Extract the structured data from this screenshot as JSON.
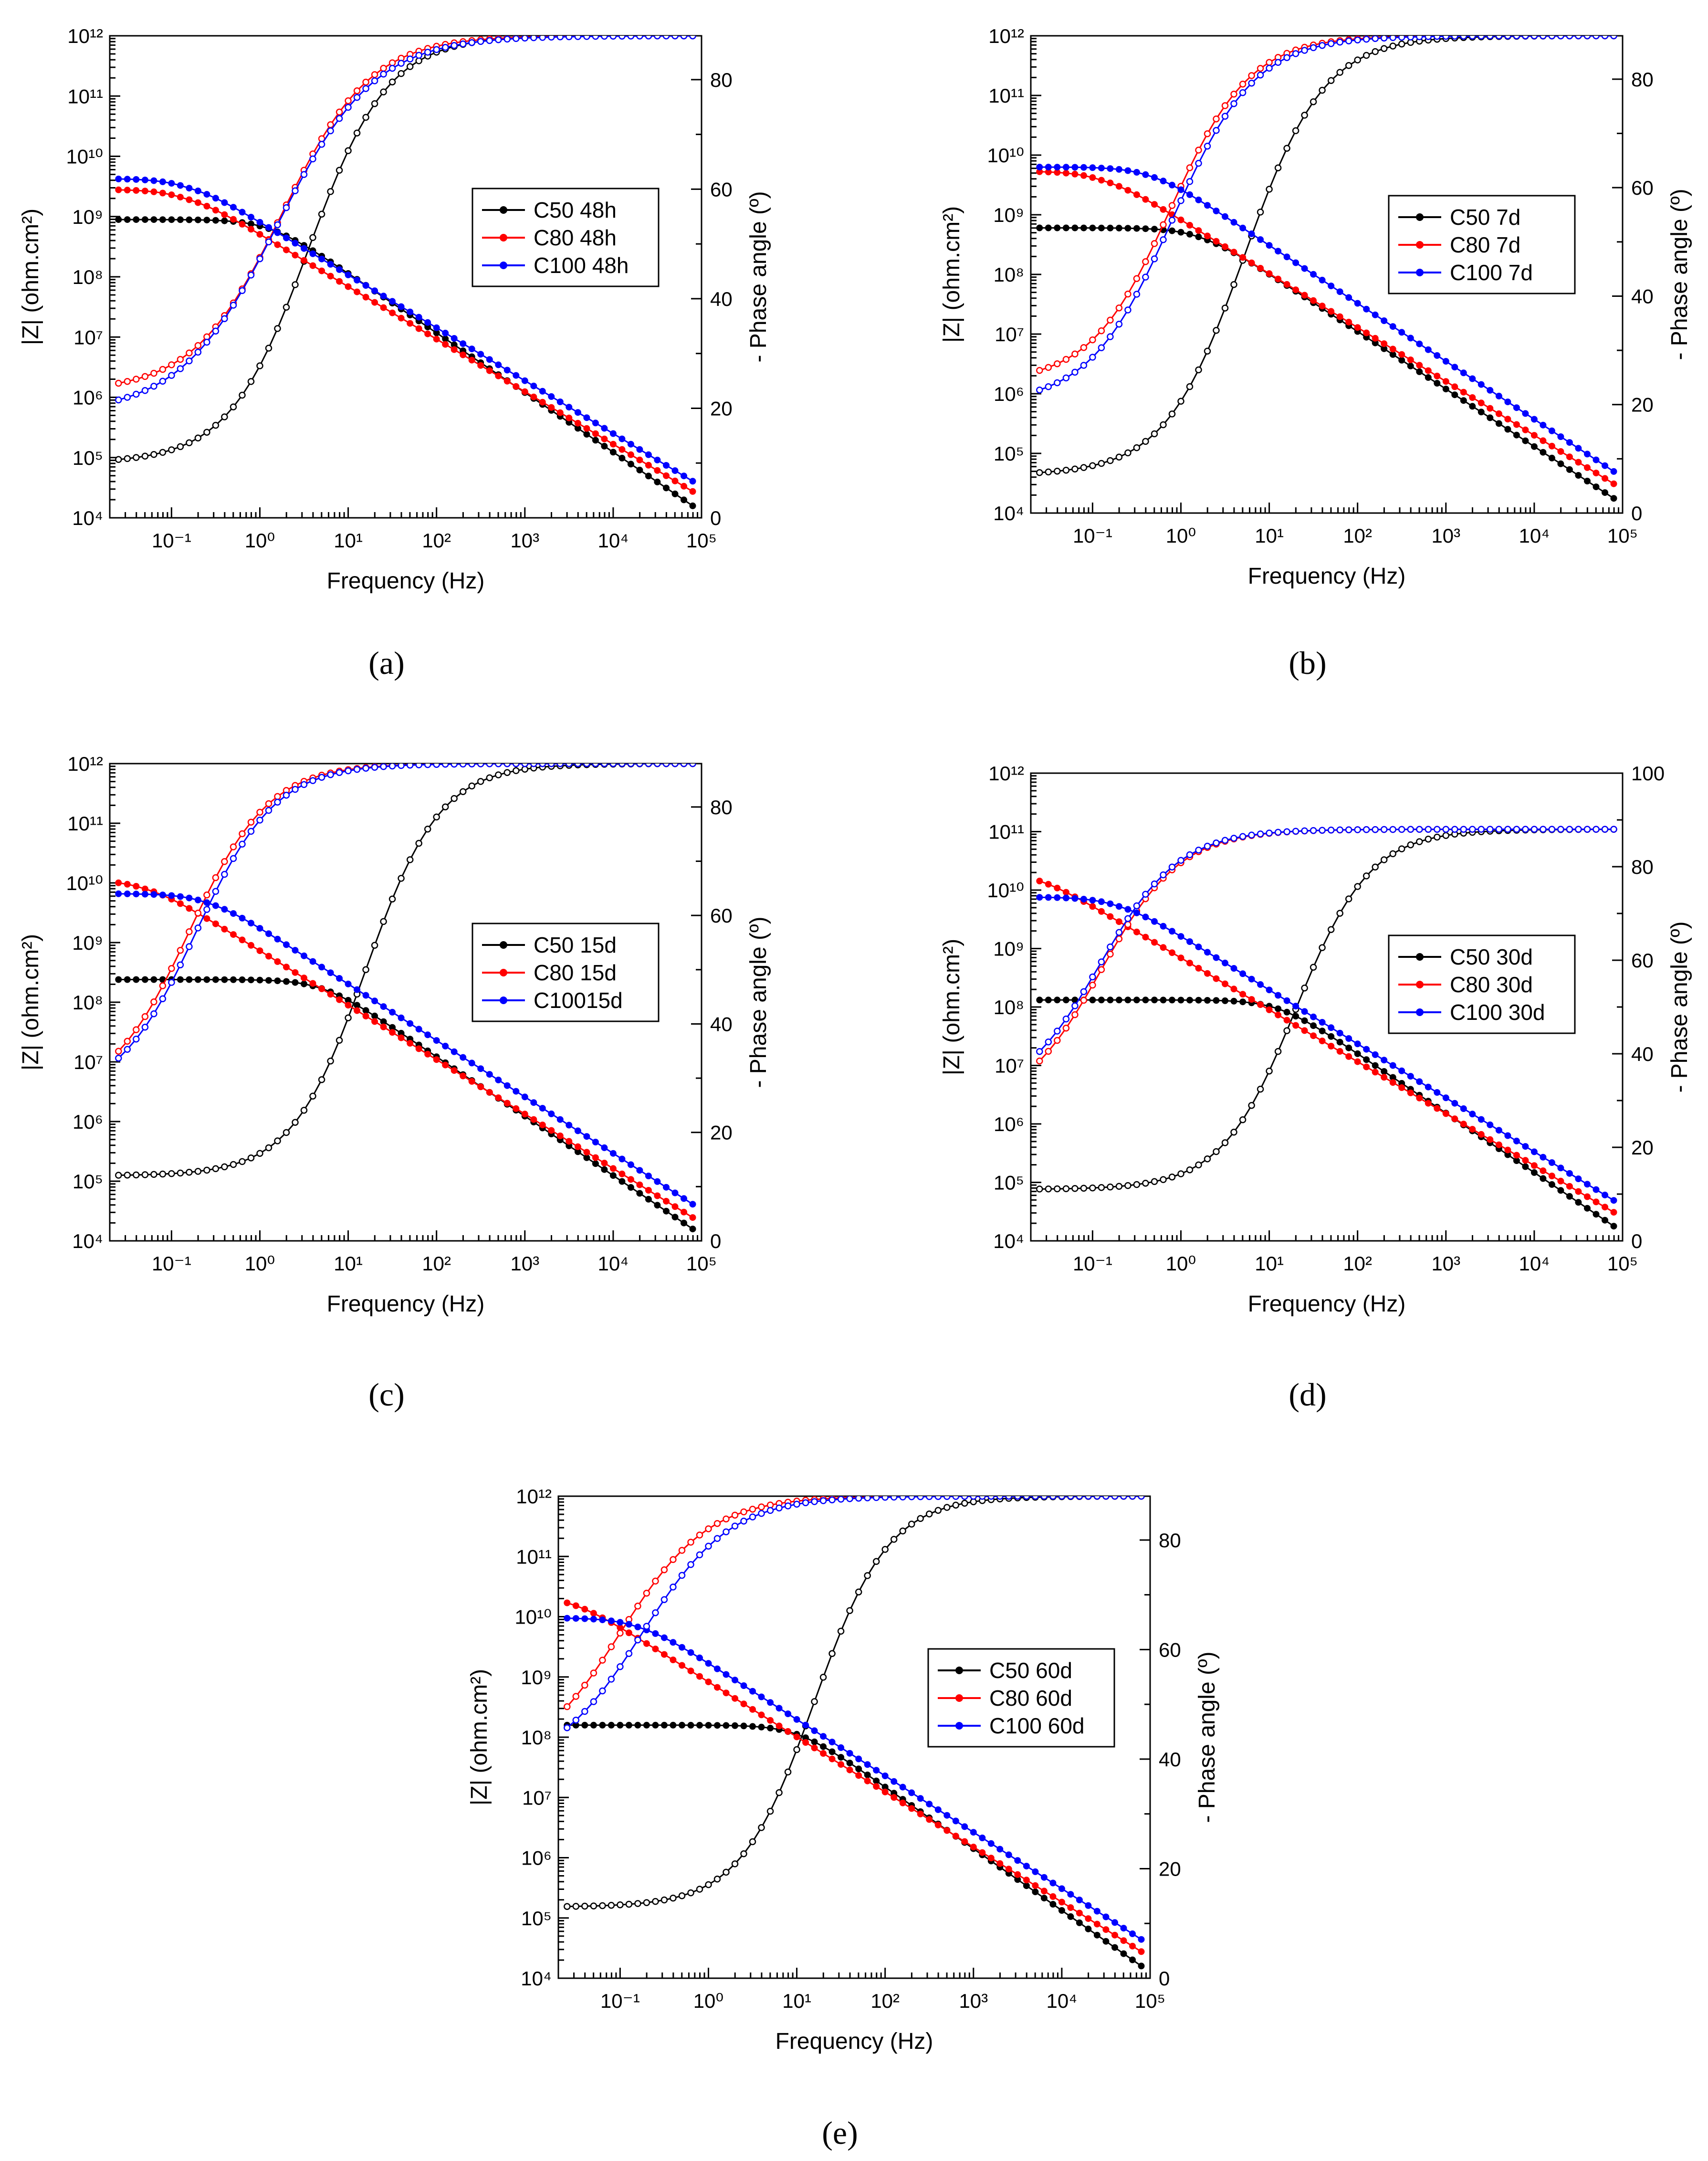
{
  "figure": {
    "colors": {
      "C50": "#000000",
      "C80": "#ff0000",
      "C100": "#0000ff"
    },
    "x_axis_label": "Frequency (Hz)",
    "left_axis_label": "|Z| (ohm.cm²)",
    "right_axis_label": "- Phase angle (º)"
  },
  "chart_data": [
    {
      "type": "line",
      "panel": "a",
      "caption": "(a)",
      "xlabel": "Frequency (Hz)",
      "ylabel_left": "|Z| (ohm.cm²)",
      "ylabel_right": "- Phase angle (º)",
      "x_scale": "log",
      "xlim": [
        0.02,
        100000
      ],
      "y_left_scale": "log",
      "ylim_left": [
        10000,
        1000000000000
      ],
      "ylim_right": [
        0,
        88
      ],
      "right_ticks": [
        0,
        20,
        40,
        60,
        80
      ],
      "legend": [
        "C50 48h",
        "C80 48h",
        "C100 48h"
      ],
      "legend_position": "center-right",
      "series": [
        {
          "name": "C50 48h",
          "color": "#000000",
          "impedance": {
            "log_r": 8.95,
            "log_fc": 0.1,
            "hf_log": 4.2,
            "end_slope": 0.98
          },
          "phase": {
            "low": 10,
            "high": 88,
            "f_mid": 0.55,
            "width": 0.45
          }
        },
        {
          "name": "C80 48h",
          "color": "#ff0000",
          "impedance": {
            "log_r": 9.45,
            "log_fc": -0.85,
            "hf_log": 4.45,
            "end_slope": 0.98
          },
          "phase": {
            "low": 23,
            "high": 88,
            "f_mid": 0.25,
            "width": 0.5
          }
        },
        {
          "name": "C100 48h",
          "color": "#0000ff",
          "impedance": {
            "log_r": 9.63,
            "log_fc": -0.82,
            "hf_log": 4.62,
            "end_slope": 0.98
          },
          "phase": {
            "low": 19,
            "high": 88,
            "f_mid": 0.2,
            "width": 0.55
          }
        }
      ]
    },
    {
      "type": "line",
      "panel": "b",
      "caption": "(b)",
      "xlabel": "Frequency (Hz)",
      "ylabel_left": "|Z| (ohm.cm²)",
      "ylabel_right": "- Phase angle (º)",
      "x_scale": "log",
      "xlim": [
        0.02,
        100000
      ],
      "y_left_scale": "log",
      "ylim_left": [
        10000,
        1000000000000
      ],
      "ylim_right": [
        0,
        88
      ],
      "right_ticks": [
        0,
        20,
        40,
        60,
        80
      ],
      "legend": [
        "C50 7d",
        "C80 7d",
        "C100 7d"
      ],
      "legend_position": "center-right",
      "series": [
        {
          "name": "C50 7d",
          "color": "#000000",
          "impedance": {
            "log_r": 8.78,
            "log_fc": 0.2,
            "hf_log": 4.25,
            "end_slope": 0.98
          },
          "phase": {
            "low": 7,
            "high": 88,
            "f_mid": 0.72,
            "width": 0.45
          }
        },
        {
          "name": "C80 7d",
          "color": "#ff0000",
          "impedance": {
            "log_r": 9.73,
            "log_fc": -0.9,
            "hf_log": 4.5,
            "end_slope": 0.98
          },
          "phase": {
            "low": 24,
            "high": 88,
            "f_mid": -0.12,
            "width": 0.45
          }
        },
        {
          "name": "C100 7d",
          "color": "#0000ff",
          "impedance": {
            "log_r": 9.8,
            "log_fc": -0.35,
            "hf_log": 4.7,
            "end_slope": 0.98
          },
          "phase": {
            "low": 20,
            "high": 88,
            "f_mid": -0.1,
            "width": 0.47
          }
        }
      ]
    },
    {
      "type": "line",
      "panel": "c",
      "caption": "(c)",
      "xlabel": "Frequency (Hz)",
      "ylabel_left": "|Z| (ohm.cm²)",
      "ylabel_right": "- Phase angle (º)",
      "x_scale": "log",
      "xlim": [
        0.02,
        100000
      ],
      "y_left_scale": "log",
      "ylim_left": [
        10000,
        1000000000000
      ],
      "ylim_right": [
        0,
        88
      ],
      "right_ticks": [
        0,
        20,
        40,
        60,
        80
      ],
      "legend": [
        "C50 15d",
        "C80 15d",
        "C10015d"
      ],
      "legend_position": "center-right",
      "series": [
        {
          "name": "C50 15d",
          "color": "#000000",
          "impedance": {
            "log_r": 8.38,
            "log_fc": 0.7,
            "hf_log": 4.2,
            "end_slope": 0.98
          },
          "phase": {
            "low": 12,
            "high": 88,
            "f_mid": 1.2,
            "width": 0.42
          }
        },
        {
          "name": "C80 15d",
          "color": "#ff0000",
          "impedance": {
            "log_r": 10.05,
            "log_fc": -1.3,
            "hf_log": 4.4,
            "end_slope": 0.98
          },
          "phase": {
            "low": 26,
            "high": 88,
            "f_mid": -0.8,
            "width": 0.45
          }
        },
        {
          "name": "C10015d",
          "color": "#0000ff",
          "impedance": {
            "log_r": 9.82,
            "log_fc": -0.6,
            "hf_log": 4.62,
            "end_slope": 0.98
          },
          "phase": {
            "low": 26,
            "high": 88,
            "f_mid": -0.72,
            "width": 0.45
          }
        }
      ]
    },
    {
      "type": "line",
      "panel": "d",
      "caption": "(d)",
      "xlabel": "Frequency (Hz)",
      "ylabel_left": "|Z| (ohm.cm²)",
      "ylabel_right": "- Phase angle (º)",
      "x_scale": "log",
      "xlim": [
        0.02,
        100000
      ],
      "y_left_scale": "log",
      "ylim_left": [
        10000,
        1000000000000
      ],
      "ylim_right": [
        0,
        100
      ],
      "right_ticks": [
        0,
        20,
        40,
        60,
        80,
        100
      ],
      "legend": [
        "C50 30d",
        "C80 30d",
        "C100 30d"
      ],
      "legend_position": "center-right",
      "series": [
        {
          "name": "C50 30d",
          "color": "#000000",
          "impedance": {
            "log_r": 8.12,
            "log_fc": 1.1,
            "hf_log": 4.25,
            "end_slope": 0.98
          },
          "phase": {
            "low": 11,
            "high": 88,
            "f_mid": 1.3,
            "width": 0.42
          }
        },
        {
          "name": "C80 30d",
          "color": "#ff0000",
          "impedance": {
            "log_r": 10.35,
            "log_fc": -1.7,
            "hf_log": 4.5,
            "end_slope": 0.98
          },
          "phase": {
            "low": 28,
            "high": 88,
            "f_mid": -0.9,
            "width": 0.45
          }
        },
        {
          "name": "C100 30d",
          "color": "#0000ff",
          "impedance": {
            "log_r": 9.88,
            "log_fc": -0.72,
            "hf_log": 4.7,
            "end_slope": 0.98
          },
          "phase": {
            "low": 30,
            "high": 88,
            "f_mid": -0.92,
            "width": 0.45
          }
        }
      ]
    },
    {
      "type": "line",
      "panel": "e",
      "caption": "(e)",
      "xlabel": "Frequency (Hz)",
      "ylabel_left": "|Z| (ohm.cm²)",
      "ylabel_right": "- Phase angle (º)",
      "x_scale": "log",
      "xlim": [
        0.02,
        100000
      ],
      "y_left_scale": "log",
      "ylim_left": [
        10000,
        1000000000000
      ],
      "ylim_right": [
        0,
        88
      ],
      "right_ticks": [
        0,
        20,
        40,
        60,
        80
      ],
      "legend": [
        "C50 60d",
        "C80 60d",
        "C100 60d"
      ],
      "legend_position": "center-right",
      "series": [
        {
          "name": "C50 60d",
          "color": "#000000",
          "impedance": {
            "log_r": 8.2,
            "log_fc": 1.0,
            "hf_log": 4.2,
            "end_slope": 0.98
          },
          "phase": {
            "low": 13,
            "high": 88,
            "f_mid": 1.2,
            "width": 0.42
          }
        },
        {
          "name": "C80 60d",
          "color": "#ff0000",
          "impedance": {
            "log_r": 10.38,
            "log_fc": -1.6,
            "hf_log": 4.45,
            "end_slope": 0.98
          },
          "phase": {
            "low": 38,
            "high": 88,
            "f_mid": -1.0,
            "width": 0.5
          }
        },
        {
          "name": "C100 60d",
          "color": "#0000ff",
          "impedance": {
            "log_r": 9.98,
            "log_fc": -0.8,
            "hf_log": 4.65,
            "end_slope": 0.98
          },
          "phase": {
            "low": 38,
            "high": 88,
            "f_mid": -0.75,
            "width": 0.5
          }
        }
      ]
    }
  ]
}
